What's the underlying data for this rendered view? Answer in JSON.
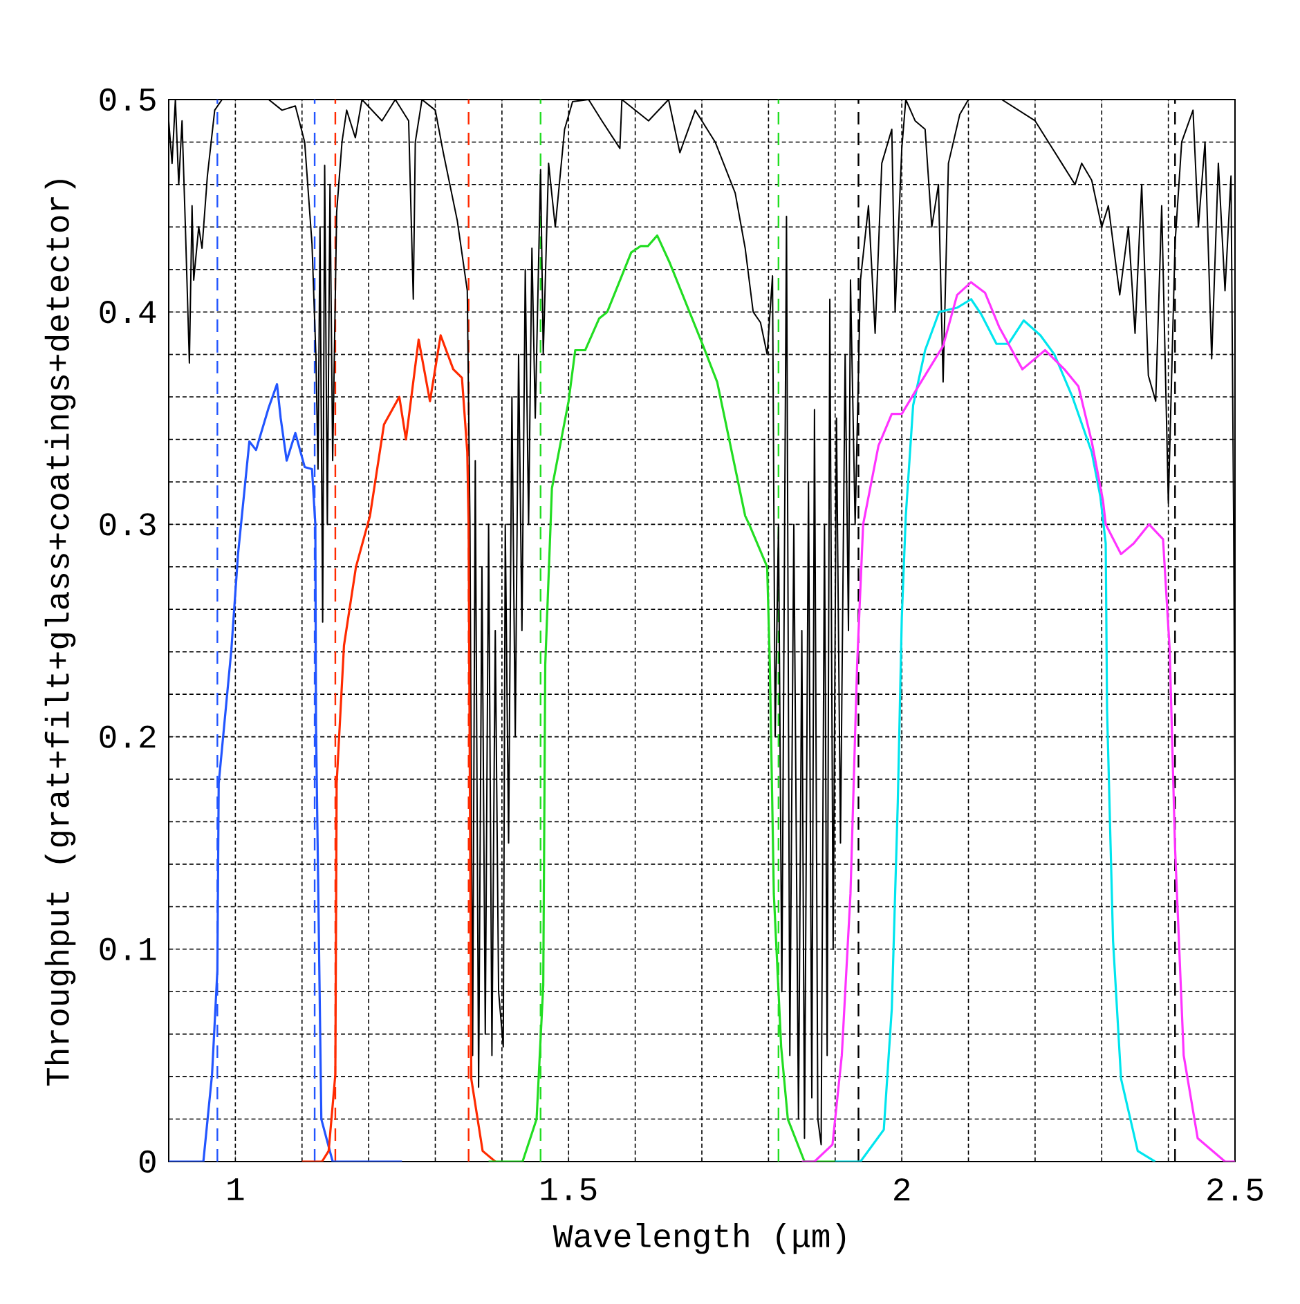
{
  "chart_data": {
    "type": "line",
    "xlabel": "Wavelength (μm)",
    "ylabel": "Throughput (grat+filt+glass+coatings+detector)",
    "xlim": [
      0.9,
      2.5
    ],
    "ylim": [
      0,
      0.5
    ],
    "xticks": [
      1,
      1.5,
      2,
      2.5
    ],
    "yticks": [
      0,
      0.1,
      0.2,
      0.3,
      0.4,
      0.5
    ],
    "grid": true,
    "marker": "none",
    "line_style": "solid",
    "series": [
      {
        "color": "#000000",
        "x": [
          0.9,
          0.905,
          0.91,
          0.915,
          0.92,
          0.925,
          0.931,
          0.935,
          0.9375,
          0.945,
          0.95,
          0.958,
          0.969,
          0.98,
          1.05,
          1.07,
          1.09,
          1.104,
          1.115,
          1.121,
          1.124,
          1.127,
          1.131,
          1.134,
          1.138,
          1.142,
          1.146,
          1.152,
          1.16,
          1.167,
          1.18,
          1.19,
          1.22,
          1.24,
          1.26,
          1.267,
          1.27,
          1.28,
          1.3,
          1.312,
          1.333,
          1.348,
          1.352,
          1.356,
          1.36,
          1.365,
          1.37,
          1.375,
          1.38,
          1.385,
          1.39,
          1.395,
          1.402,
          1.405,
          1.41,
          1.415,
          1.42,
          1.425,
          1.43,
          1.435,
          1.44,
          1.445,
          1.45,
          1.458,
          1.462,
          1.47,
          1.48,
          1.494,
          1.506,
          1.53,
          1.55,
          1.577,
          1.58,
          1.62,
          1.65,
          1.667,
          1.69,
          1.72,
          1.75,
          1.765,
          1.777,
          1.788,
          1.798,
          1.806,
          1.81,
          1.815,
          1.82,
          1.827,
          1.832,
          1.838,
          1.845,
          1.85,
          1.854,
          1.86,
          1.865,
          1.869,
          1.874,
          1.879,
          1.884,
          1.888,
          1.892,
          1.897,
          1.902,
          1.908,
          1.915,
          1.92,
          1.923,
          1.93,
          1.938,
          1.95,
          1.96,
          1.97,
          1.985,
          1.99,
          2.0,
          2.006,
          2.02,
          2.035,
          2.045,
          2.055,
          2.062,
          2.07,
          2.087,
          2.1,
          2.15,
          2.2,
          2.22,
          2.24,
          2.26,
          2.27,
          2.285,
          2.3,
          2.31,
          2.327,
          2.34,
          2.35,
          2.36,
          2.37,
          2.381,
          2.39,
          2.4,
          2.41,
          2.42,
          2.437,
          2.445,
          2.455,
          2.465,
          2.475,
          2.485,
          2.494,
          2.498,
          2.5
        ],
        "values": [
          0.49,
          0.47,
          0.5,
          0.46,
          0.49,
          0.44,
          0.376,
          0.45,
          0.415,
          0.44,
          0.43,
          0.464,
          0.495,
          0.5,
          0.5,
          0.495,
          0.497,
          0.48,
          0.432,
          0.378,
          0.326,
          0.44,
          0.254,
          0.469,
          0.3,
          0.46,
          0.33,
          0.447,
          0.48,
          0.495,
          0.482,
          0.5,
          0.49,
          0.5,
          0.49,
          0.406,
          0.48,
          0.5,
          0.495,
          0.475,
          0.443,
          0.41,
          0.3,
          0.05,
          0.33,
          0.035,
          0.28,
          0.06,
          0.3,
          0.05,
          0.25,
          0.08,
          0.054,
          0.3,
          0.15,
          0.36,
          0.2,
          0.38,
          0.25,
          0.42,
          0.3,
          0.43,
          0.35,
          0.467,
          0.38,
          0.47,
          0.44,
          0.486,
          0.499,
          0.5,
          0.49,
          0.477,
          0.5,
          0.49,
          0.5,
          0.475,
          0.495,
          0.48,
          0.456,
          0.43,
          0.4,
          0.395,
          0.38,
          0.417,
          0.2,
          0.3,
          0.08,
          0.445,
          0.05,
          0.3,
          0.02,
          0.25,
          0.011,
          0.32,
          0.03,
          0.354,
          0.02,
          0.008,
          0.3,
          0.05,
          0.406,
          0.1,
          0.35,
          0.15,
          0.38,
          0.25,
          0.415,
          0.3,
          0.415,
          0.45,
          0.39,
          0.47,
          0.486,
          0.4,
          0.477,
          0.5,
          0.49,
          0.486,
          0.44,
          0.46,
          0.367,
          0.47,
          0.493,
          0.5,
          0.5,
          0.49,
          0.48,
          0.47,
          0.46,
          0.47,
          0.462,
          0.44,
          0.45,
          0.408,
          0.44,
          0.39,
          0.46,
          0.37,
          0.358,
          0.45,
          0.31,
          0.432,
          0.48,
          0.495,
          0.44,
          0.48,
          0.378,
          0.47,
          0.41,
          0.464,
          0.3,
          0.17
        ]
      },
      {
        "color": "#2255ff",
        "x": [
          0.9,
          0.94,
          0.952,
          0.965,
          0.973,
          0.975,
          0.994,
          1.004,
          1.021,
          1.031,
          1.05,
          1.0625,
          1.068,
          1.077,
          1.09,
          1.104,
          1.115,
          1.12,
          1.121,
          1.129,
          1.146,
          1.25
        ],
        "values": [
          0,
          0,
          0,
          0.041,
          0.09,
          0.178,
          0.241,
          0.286,
          0.339,
          0.335,
          0.355,
          0.366,
          0.35,
          0.33,
          0.343,
          0.327,
          0.326,
          0.3,
          0.206,
          0.02,
          0,
          0
        ]
      },
      {
        "color": "#ff2a00",
        "x": [
          1.1,
          1.13,
          1.14,
          1.15,
          1.152,
          1.163,
          1.181,
          1.202,
          1.223,
          1.246,
          1.256,
          1.275,
          1.292,
          1.308,
          1.327,
          1.34,
          1.348,
          1.35,
          1.354,
          1.371,
          1.39
        ],
        "values": [
          0,
          0,
          0.005,
          0.041,
          0.178,
          0.243,
          0.28,
          0.304,
          0.347,
          0.36,
          0.34,
          0.387,
          0.358,
          0.389,
          0.373,
          0.369,
          0.334,
          0.3,
          0.039,
          0.005,
          0
        ]
      },
      {
        "color": "#22dd22",
        "x": [
          1.38,
          1.431,
          1.452,
          1.462,
          1.465,
          1.473,
          1.475,
          1.5,
          1.51,
          1.525,
          1.546,
          1.558,
          1.594,
          1.608,
          1.619,
          1.633,
          1.652,
          1.702,
          1.723,
          1.765,
          1.771,
          1.798,
          1.802,
          1.808,
          1.819,
          1.829,
          1.854,
          1.9
        ],
        "values": [
          0,
          0,
          0.02,
          0.083,
          0.234,
          0.3,
          0.317,
          0.358,
          0.382,
          0.382,
          0.397,
          0.4,
          0.428,
          0.431,
          0.431,
          0.436,
          0.423,
          0.384,
          0.367,
          0.304,
          0.3,
          0.28,
          0.234,
          0.126,
          0.054,
          0.02,
          0,
          0
        ]
      },
      {
        "color": "#00e5ee",
        "x": [
          1.9,
          1.938,
          1.973,
          1.985,
          1.994,
          2.0,
          2.006,
          2.017,
          2.035,
          2.056,
          2.083,
          2.104,
          2.119,
          2.142,
          2.16,
          2.183,
          2.208,
          2.229,
          2.256,
          2.285,
          2.298,
          2.306,
          2.308,
          2.317,
          2.329,
          2.354,
          2.38
        ],
        "values": [
          0,
          0,
          0.015,
          0.072,
          0.169,
          0.256,
          0.304,
          0.356,
          0.382,
          0.4,
          0.402,
          0.406,
          0.399,
          0.385,
          0.385,
          0.396,
          0.389,
          0.38,
          0.36,
          0.334,
          0.313,
          0.291,
          0.213,
          0.104,
          0.039,
          0.005,
          0
        ]
      },
      {
        "color": "#ff33ff",
        "x": [
          1.85,
          1.869,
          1.896,
          1.91,
          1.923,
          1.933,
          1.942,
          1.965,
          1.985,
          2.0,
          2.021,
          2.062,
          2.083,
          2.104,
          2.125,
          2.146,
          2.181,
          2.215,
          2.244,
          2.265,
          2.285,
          2.302,
          2.306,
          2.329,
          2.348,
          2.371,
          2.392,
          2.402,
          2.41,
          2.423,
          2.444,
          2.485,
          2.5
        ],
        "values": [
          0,
          0,
          0.008,
          0.05,
          0.126,
          0.234,
          0.3,
          0.337,
          0.352,
          0.352,
          0.363,
          0.384,
          0.408,
          0.414,
          0.409,
          0.393,
          0.373,
          0.382,
          0.373,
          0.365,
          0.339,
          0.311,
          0.3,
          0.286,
          0.291,
          0.3,
          0.293,
          0.241,
          0.148,
          0.05,
          0.011,
          0,
          0
        ]
      }
    ],
    "ref_lines": [
      {
        "axis": "x",
        "value": 0.973,
        "color": "#2255ff",
        "line_style": "dashed"
      },
      {
        "axis": "x",
        "value": 1.119,
        "color": "#2255ff",
        "line_style": "dashed"
      },
      {
        "axis": "x",
        "value": 1.15,
        "color": "#ff2a00",
        "line_style": "dashed"
      },
      {
        "axis": "x",
        "value": 1.35,
        "color": "#ff2a00",
        "line_style": "dashed"
      },
      {
        "axis": "x",
        "value": 1.458,
        "color": "#22dd22",
        "line_style": "dashed"
      },
      {
        "axis": "x",
        "value": 1.815,
        "color": "#22dd22",
        "line_style": "dashed"
      },
      {
        "axis": "x",
        "value": 1.935,
        "color": "#000000",
        "line_style": "dashed"
      },
      {
        "axis": "x",
        "value": 2.41,
        "color": "#000000",
        "line_style": "dashed"
      }
    ]
  }
}
